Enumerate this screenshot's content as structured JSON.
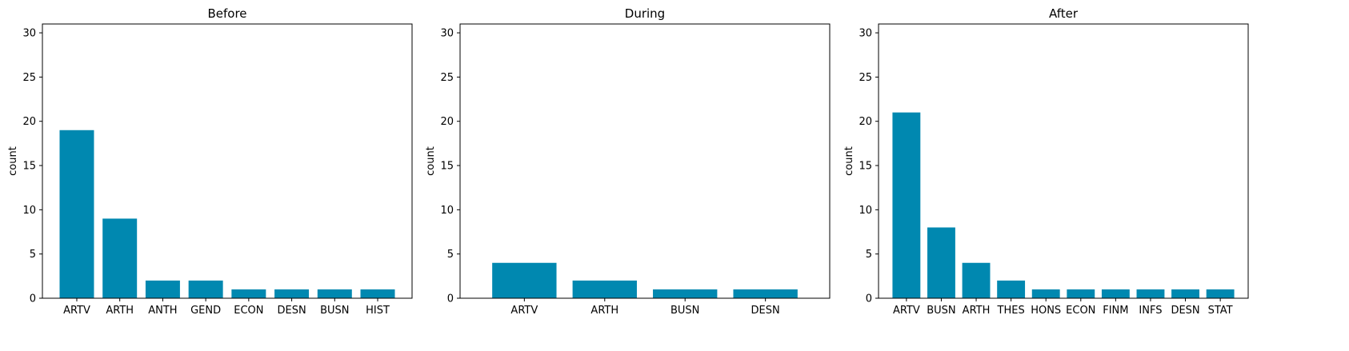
{
  "chart_data": [
    {
      "type": "bar",
      "title": "Before",
      "xlabel": "",
      "ylabel": "count",
      "ylim": [
        0,
        31
      ],
      "yticks": [
        0,
        5,
        10,
        15,
        20,
        25,
        30
      ],
      "grid": false,
      "bar_color": "#0088b0",
      "categories": [
        "ARTV",
        "ARTH",
        "ANTH",
        "GEND",
        "ECON",
        "DESN",
        "BUSN",
        "HIST"
      ],
      "values": [
        19,
        9,
        2,
        2,
        1,
        1,
        1,
        1
      ]
    },
    {
      "type": "bar",
      "title": "During",
      "xlabel": "",
      "ylabel": "count",
      "ylim": [
        0,
        31
      ],
      "yticks": [
        0,
        5,
        10,
        15,
        20,
        25,
        30
      ],
      "grid": false,
      "bar_color": "#0088b0",
      "categories": [
        "ARTV",
        "ARTH",
        "BUSN",
        "DESN"
      ],
      "values": [
        4,
        2,
        1,
        1
      ]
    },
    {
      "type": "bar",
      "title": "After",
      "xlabel": "",
      "ylabel": "count",
      "ylim": [
        0,
        31
      ],
      "yticks": [
        0,
        5,
        10,
        15,
        20,
        25,
        30
      ],
      "grid": false,
      "bar_color": "#0088b0",
      "categories": [
        "ARTV",
        "BUSN",
        "ARTH",
        "THES",
        "HONS",
        "ECON",
        "FINM",
        "INFS",
        "DESN",
        "STAT"
      ],
      "values": [
        21,
        8,
        4,
        2,
        1,
        1,
        1,
        1,
        1,
        1
      ]
    }
  ]
}
